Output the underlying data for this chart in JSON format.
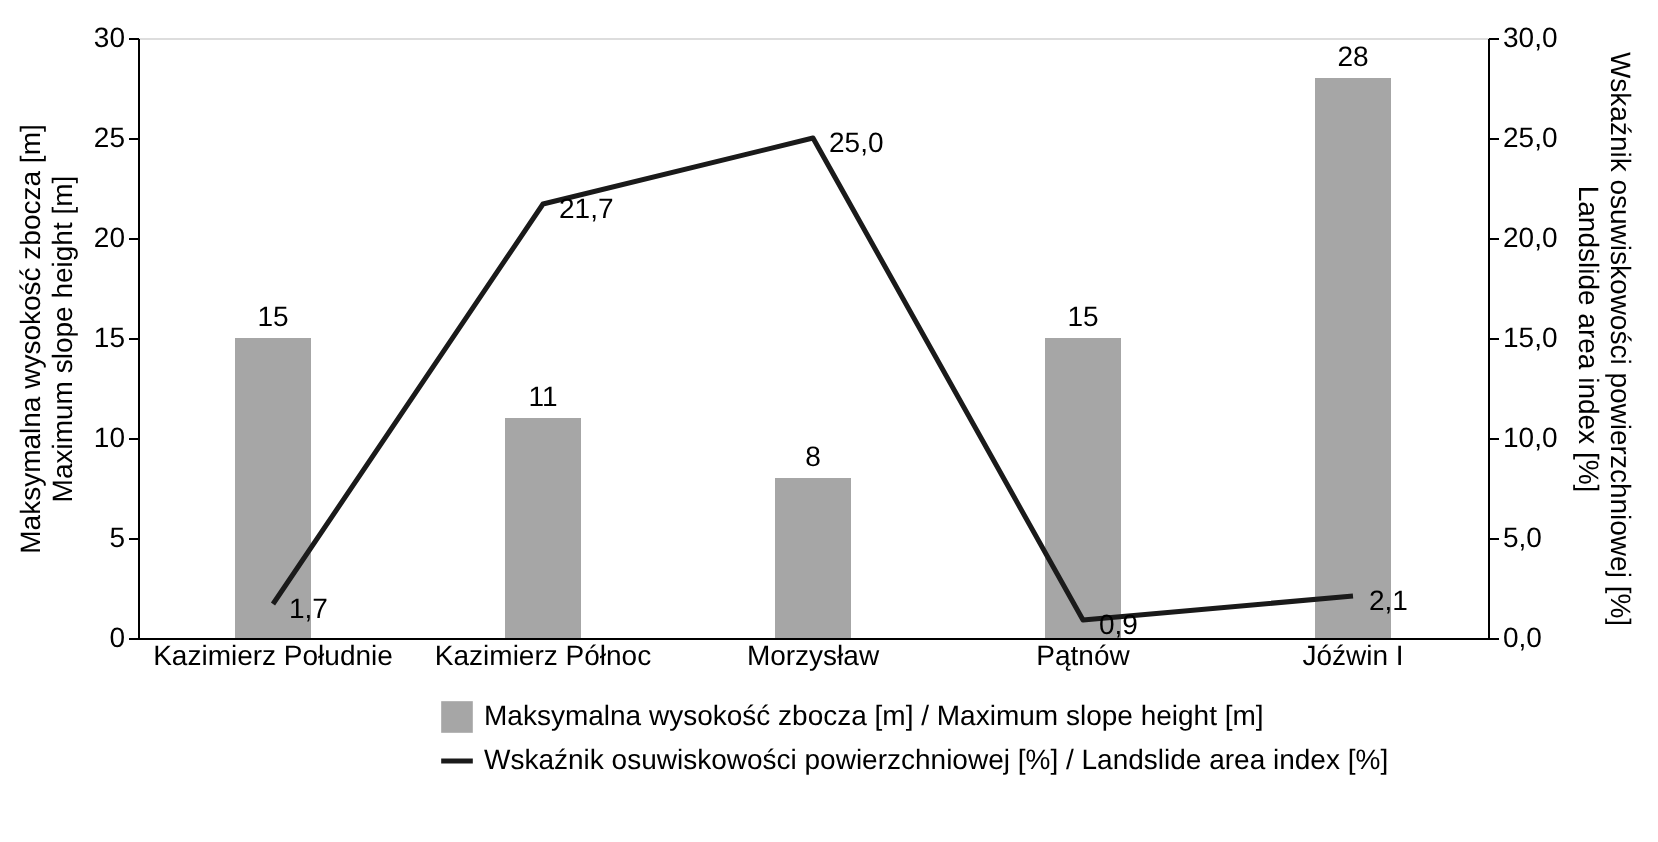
{
  "chart_data": {
    "type": "bar",
    "ylabel": "Maksymalna wysokość zbocza [m]\nMaximum slope height [m]",
    "y2label": "Wskaźnik osuwiskowości powierzchniowej [%]\nLandslide area index [%]",
    "categories": [
      "Kazimierz Południe",
      "Kazimierz Północ",
      "Morzysław",
      "Pątnów",
      "Jóźwin I"
    ],
    "series": [
      {
        "name": "Maksymalna wysokość zbocza [m] / Maximum slope height [m]",
        "color": "#a6a6a6",
        "values": [
          15,
          11,
          8,
          15,
          28
        ],
        "value_labels": [
          "15",
          "11",
          "8",
          "15",
          "28"
        ]
      },
      {
        "name": "Wskaźnik osuwiskowości powierzchniowej [%] / Landslide area index [%]",
        "type": "line",
        "axis": "y2",
        "color": "#1a1a1a",
        "values": [
          1.7,
          21.7,
          25.0,
          0.9,
          2.1
        ],
        "value_labels": [
          "1,7",
          "21,7",
          "25,0",
          "0,9",
          "2,1"
        ]
      }
    ],
    "ylim": [
      0,
      30
    ],
    "yticks": [
      0,
      5,
      10,
      15,
      20,
      25,
      30
    ],
    "y2lim": [
      0,
      30
    ],
    "y2ticks": [
      {
        "value": 0,
        "label": "0,0"
      },
      {
        "value": 5,
        "label": "5,0"
      },
      {
        "value": 10,
        "label": "10,0"
      },
      {
        "value": 15,
        "label": "15,0"
      },
      {
        "value": 20,
        "label": "20,0"
      },
      {
        "value": 25,
        "label": "25,0"
      },
      {
        "value": 30,
        "label": "30,0"
      }
    ],
    "grid": false,
    "legend": "bottom",
    "marker": "none",
    "line_style": "solid"
  }
}
